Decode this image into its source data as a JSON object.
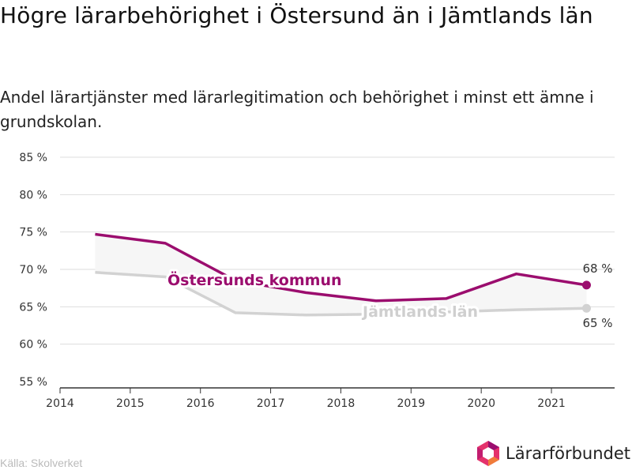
{
  "header": {
    "title": "Högre lärarbehörighet i Östersund än i Jämtlands län",
    "subtitle": "Andel lärartjänster med lärarlegitimation och behörighet i minst ett ämne i grundskolan."
  },
  "footer": {
    "source": "Källa: Skolverket",
    "logo_text": "Lärarförbundet"
  },
  "colors": {
    "ostersund": "#9b0d6e",
    "jamtland": "#d2d2d2",
    "grid": "#dddddd",
    "band": "#f6f6f6",
    "axis": "#333333"
  },
  "chart_data": {
    "type": "line",
    "x": [
      2014.5,
      2015.5,
      2016.5,
      2017.5,
      2018.5,
      2019.5,
      2020.5,
      2021.5
    ],
    "series": [
      {
        "name": "Östersunds kommun",
        "values": [
          74.7,
          73.5,
          68.5,
          66.9,
          65.8,
          66.1,
          69.4,
          67.9
        ],
        "end_label": "68 %"
      },
      {
        "name": "Jämtlands län",
        "values": [
          69.6,
          69.0,
          64.2,
          63.9,
          64.0,
          64.3,
          64.6,
          64.8
        ],
        "end_label": "65 %"
      }
    ],
    "x_ticks": [
      "2014",
      "2015",
      "2016",
      "2017",
      "2018",
      "2019",
      "2020",
      "2021"
    ],
    "x_tick_values": [
      2014,
      2015,
      2016,
      2017,
      2018,
      2019,
      2020,
      2021
    ],
    "y_ticks": [
      "55 %",
      "60 %",
      "65 %",
      "70 %",
      "75 %",
      "80 %",
      "85 %"
    ],
    "y_tick_values": [
      55,
      60,
      65,
      70,
      75,
      80,
      85
    ],
    "xlim": [
      2014,
      2021.9
    ],
    "ylim": [
      55,
      85
    ],
    "grid": true,
    "legend": "inline labels"
  }
}
